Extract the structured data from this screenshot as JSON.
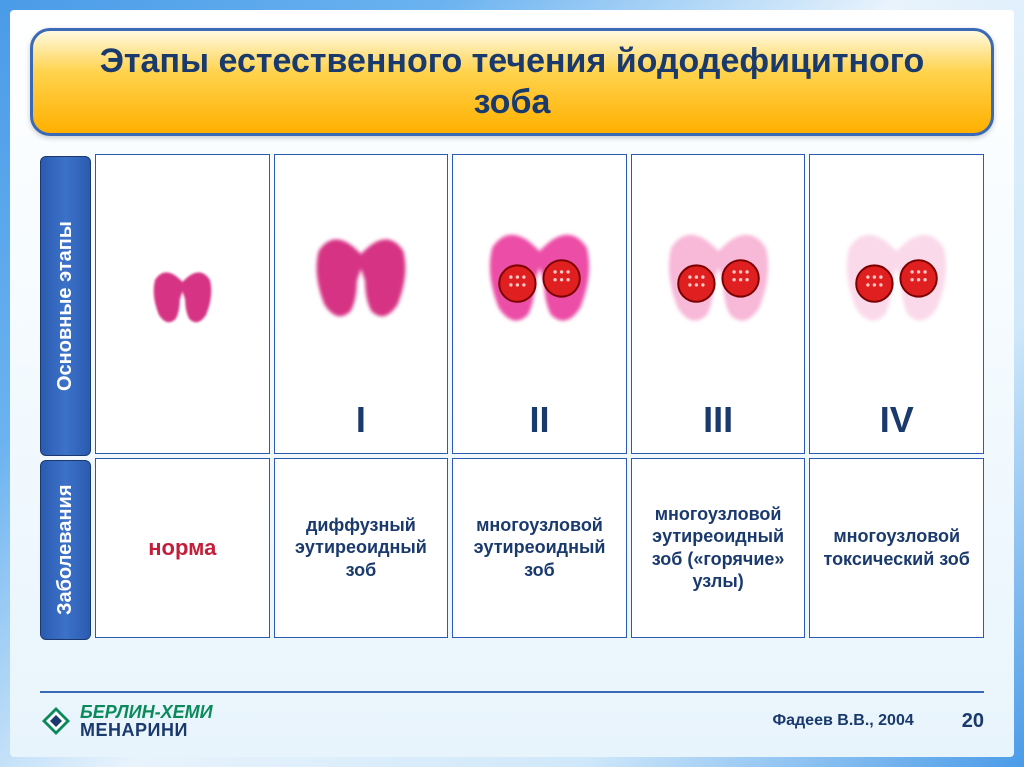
{
  "title": "Этапы естественного течения йододефицитного зоба",
  "row_labels": {
    "stages": "Основные этапы",
    "diseases": "Заболевания"
  },
  "columns": [
    {
      "stage": "",
      "disease": "норма",
      "disease_class": "norma",
      "thyroid": {
        "scale": 0.55,
        "fill": "#d63384",
        "opacity": 1.0,
        "nodules": false
      }
    },
    {
      "stage": "I",
      "disease": "диффузный эутиреоидный зоб",
      "thyroid": {
        "scale": 0.85,
        "fill": "#d63384",
        "opacity": 1.0,
        "nodules": false
      }
    },
    {
      "stage": "II",
      "disease": "многоузловой эутиреоидный зоб",
      "thyroid": {
        "scale": 0.95,
        "fill": "#ec4da6",
        "opacity": 1.0,
        "nodules": true
      }
    },
    {
      "stage": "III",
      "disease": "многоузловой эутиреоидный зоб («горячие» узлы)",
      "thyroid": {
        "scale": 0.95,
        "fill": "#f8b8d8",
        "opacity": 1.0,
        "nodules": true
      }
    },
    {
      "stage": "IV",
      "disease": "многоузловой токсический зоб",
      "thyroid": {
        "scale": 0.95,
        "fill": "#fad6e8",
        "opacity": 0.9,
        "nodules": true
      }
    }
  ],
  "styling": {
    "title_bg": [
      "#fff9e0",
      "#ffd34d",
      "#ffb000"
    ],
    "title_border": "#3a6ab5",
    "title_color": "#1a3a6e",
    "vlabel_bg": "#2a5bb0",
    "vlabel_text": "#ffffff",
    "cell_border": "#2a5bb0",
    "cell_bg": "#ffffff",
    "stage_text": "#1a3a6e",
    "disease_text": "#1a3a6e",
    "norma_text": "#c41e3a",
    "nodule_fill": "#e02020",
    "nodule_dot": "#ffc8c8",
    "page_bg_gradient": [
      "#4a9be8",
      "#6bb3f0",
      "#e8f3fc",
      "#d0e8fa",
      "#4a9be8"
    ]
  },
  "footer": {
    "logo_line1": "БЕРЛИН-ХЕМИ",
    "logo_line2": "МЕНАРИНИ",
    "citation": "Фадеев В.В., 2004",
    "page_num": "20"
  }
}
